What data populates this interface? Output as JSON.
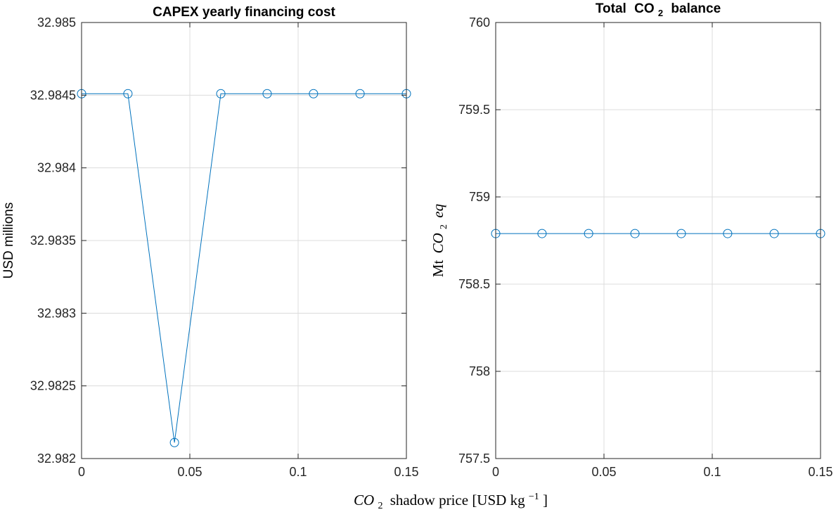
{
  "chart_data": [
    {
      "type": "line",
      "title": "CAPEX yearly financing cost",
      "xlabel": "",
      "ylabel": "USD millions",
      "xlim": [
        0,
        0.15
      ],
      "ylim": [
        32.982,
        32.985
      ],
      "x_ticks": [
        "0",
        "0.05",
        "0.1",
        "0.15"
      ],
      "y_ticks": [
        "32.982",
        "32.9825",
        "32.983",
        "32.9835",
        "32.984",
        "32.9845",
        "32.985"
      ],
      "grid": true,
      "x": [
        0,
        0.0214,
        0.0429,
        0.0643,
        0.0857,
        0.1071,
        0.1286,
        0.15
      ],
      "y": [
        32.98451,
        32.98451,
        32.98211,
        32.98451,
        32.98451,
        32.98451,
        32.98451,
        32.98451
      ]
    },
    {
      "type": "line",
      "title_parts": {
        "pre": "Total",
        "co": "CO",
        "sub": "2",
        "post": "balance"
      },
      "xlabel": "",
      "ylabel_parts": {
        "pre": "Mt",
        "co": "CO",
        "sub": "2",
        "post": "eq"
      },
      "xlim": [
        0,
        0.15
      ],
      "ylim": [
        757.5,
        760
      ],
      "x_ticks": [
        "0",
        "0.05",
        "0.1",
        "0.15"
      ],
      "y_ticks": [
        "757.5",
        "758",
        "758.5",
        "759",
        "759.5",
        "760"
      ],
      "grid": true,
      "x": [
        0,
        0.0214,
        0.0429,
        0.0643,
        0.0857,
        0.1071,
        0.1286,
        0.15
      ],
      "y": [
        758.79,
        758.79,
        758.79,
        758.79,
        758.79,
        758.79,
        758.79,
        758.79
      ]
    }
  ],
  "shared_xlabel": {
    "co": "CO",
    "sub": "2",
    "mid": "shadow price [USD kg",
    "sup": "−1",
    "end": "]"
  }
}
